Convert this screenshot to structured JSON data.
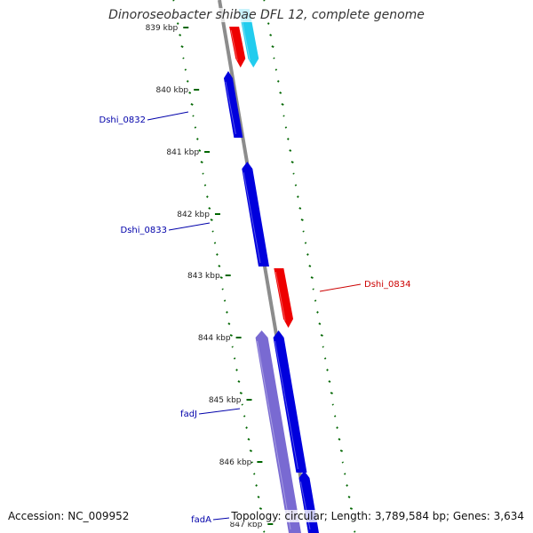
{
  "title": "Dinoroseobacter shibae DFL 12, complete genome",
  "accession_label": "Accession: NC_009952",
  "summary_label": "Topology: circular; Length: 3,789,584 bp; Genes: 3,634",
  "colors": {
    "backbone": "#8c8c8c",
    "gc_skew": "#006600",
    "forward_gene": "#0000dd",
    "reverse_gene": "#ee0000",
    "cyan_gene": "#22ccee",
    "purple_gene": "#6a5acd",
    "label_blue": "#0000aa",
    "label_red": "#cc0000"
  },
  "ticks": [
    {
      "label": "839 kbp"
    },
    {
      "label": "840 kbp"
    },
    {
      "label": "841 kbp"
    },
    {
      "label": "842 kbp"
    },
    {
      "label": "843 kbp"
    },
    {
      "label": "844 kbp"
    },
    {
      "label": "845 kbp"
    },
    {
      "label": "846 kbp"
    },
    {
      "label": "847 kbp"
    }
  ],
  "gene_labels": [
    {
      "text": "Dshi_0832",
      "color": "#0000aa"
    },
    {
      "text": "Dshi_0833",
      "color": "#0000aa"
    },
    {
      "text": "Dshi_0834",
      "color": "#cc0000"
    },
    {
      "text": "fadJ",
      "color": "#0000aa"
    },
    {
      "text": "fadA",
      "color": "#0000aa"
    }
  ]
}
